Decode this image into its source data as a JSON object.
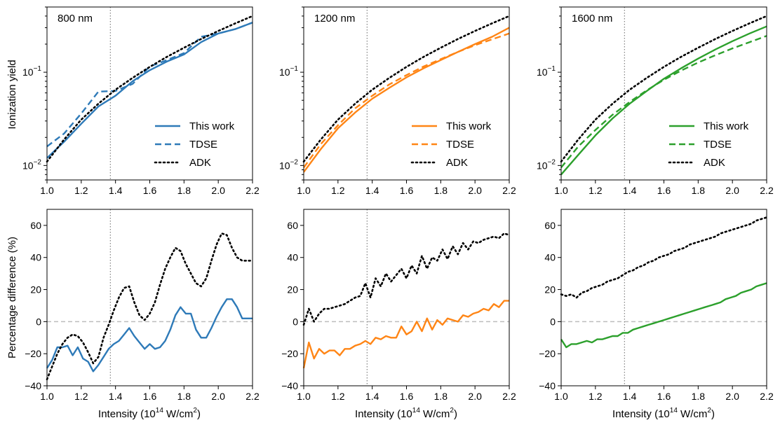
{
  "figure": {
    "xlabel": "Intensity (10",
    "xlabel_sup": "14",
    "xlabel_tail": " W/cm",
    "xlabel_sup2": "2",
    "xlabel_end": ")",
    "ylabel_top": "Ionization yield",
    "ylabel_bottom": "Percentage difference (%)"
  },
  "colors": {
    "800 nm": "#2e7ab8",
    "1200 nm": "#ff8515",
    "1600 nm": "#2ca02c",
    "adk": "#000000",
    "reference_line": "#808080",
    "zero_line": "#bdbdbd"
  },
  "chart_data": [
    {
      "type": "line",
      "title": "800 nm",
      "row": "top",
      "yscale": "log",
      "xlim": [
        1.0,
        2.2
      ],
      "ylim": [
        0.007,
        0.5
      ],
      "xticks": [
        "1.0",
        "1.2",
        "1.4",
        "1.6",
        "1.8",
        "2.0",
        "2.2"
      ],
      "yticks": [
        {
          "value": 0.01,
          "base": "10",
          "exp": "−2"
        },
        {
          "value": 0.1,
          "base": "10",
          "exp": "−1"
        }
      ],
      "vline": 1.37,
      "legend": "lower-right",
      "x": [
        1.0,
        1.1,
        1.2,
        1.3,
        1.4,
        1.5,
        1.6,
        1.7,
        1.8,
        1.9,
        2.0,
        2.1,
        2.2
      ],
      "series": [
        {
          "name": "This work",
          "style": "solid",
          "values": [
            0.012,
            0.018,
            0.028,
            0.043,
            0.056,
            0.08,
            0.105,
            0.13,
            0.155,
            0.21,
            0.26,
            0.29,
            0.34
          ]
        },
        {
          "name": "TDSE",
          "style": "dashed",
          "values": [
            0.016,
            0.022,
            0.036,
            0.062,
            0.063,
            0.075,
            0.115,
            0.135,
            0.16,
            0.24,
            0.26,
            0.29,
            0.34
          ]
        },
        {
          "name": "ADK",
          "style": "dotted",
          "values": [
            0.011,
            0.019,
            0.031,
            0.046,
            0.065,
            0.087,
            0.114,
            0.146,
            0.183,
            0.227,
            0.277,
            0.334,
            0.4
          ]
        }
      ]
    },
    {
      "type": "line",
      "title": "1200 nm",
      "row": "top",
      "yscale": "log",
      "xlim": [
        1.0,
        2.2
      ],
      "ylim": [
        0.007,
        0.5
      ],
      "xticks": [
        "1.0",
        "1.2",
        "1.4",
        "1.6",
        "1.8",
        "2.0",
        "2.2"
      ],
      "yticks": [
        {
          "value": 0.01,
          "base": "10",
          "exp": "−2"
        },
        {
          "value": 0.1,
          "base": "10",
          "exp": "−1"
        }
      ],
      "vline": 1.37,
      "legend": "lower-right",
      "x": [
        1.0,
        1.1,
        1.2,
        1.3,
        1.4,
        1.5,
        1.6,
        1.7,
        1.8,
        1.9,
        2.0,
        2.1,
        2.2
      ],
      "series": [
        {
          "name": "This work",
          "style": "solid",
          "values": [
            0.0085,
            0.015,
            0.025,
            0.037,
            0.052,
            0.068,
            0.088,
            0.11,
            0.135,
            0.165,
            0.2,
            0.24,
            0.3
          ]
        },
        {
          "name": "TDSE",
          "style": "dashed",
          "values": [
            0.0095,
            0.017,
            0.027,
            0.041,
            0.056,
            0.074,
            0.093,
            0.115,
            0.138,
            0.165,
            0.195,
            0.225,
            0.26
          ]
        },
        {
          "name": "ADK",
          "style": "dotted",
          "values": [
            0.011,
            0.019,
            0.031,
            0.046,
            0.065,
            0.087,
            0.114,
            0.146,
            0.183,
            0.227,
            0.277,
            0.334,
            0.4
          ]
        }
      ]
    },
    {
      "type": "line",
      "title": "1600 nm",
      "row": "top",
      "yscale": "log",
      "xlim": [
        1.0,
        2.2
      ],
      "ylim": [
        0.007,
        0.5
      ],
      "xticks": [
        "1.0",
        "1.2",
        "1.4",
        "1.6",
        "1.8",
        "2.0",
        "2.2"
      ],
      "yticks": [
        {
          "value": 0.01,
          "base": "10",
          "exp": "−2"
        },
        {
          "value": 0.1,
          "base": "10",
          "exp": "−1"
        }
      ],
      "vline": 1.37,
      "legend": "lower-right",
      "x": [
        1.0,
        1.1,
        1.2,
        1.3,
        1.4,
        1.5,
        1.6,
        1.7,
        1.8,
        1.9,
        2.0,
        2.1,
        2.2
      ],
      "series": [
        {
          "name": "This work",
          "style": "solid",
          "values": [
            0.008,
            0.013,
            0.021,
            0.032,
            0.046,
            0.063,
            0.085,
            0.11,
            0.14,
            0.175,
            0.215,
            0.26,
            0.31
          ]
        },
        {
          "name": "TDSE",
          "style": "dashed",
          "values": [
            0.0095,
            0.016,
            0.024,
            0.035,
            0.048,
            0.064,
            0.083,
            0.104,
            0.127,
            0.152,
            0.18,
            0.21,
            0.245
          ]
        },
        {
          "name": "ADK",
          "style": "dotted",
          "values": [
            0.011,
            0.019,
            0.031,
            0.046,
            0.065,
            0.087,
            0.114,
            0.146,
            0.183,
            0.227,
            0.277,
            0.334,
            0.4
          ]
        }
      ]
    },
    {
      "type": "line",
      "row": "bottom",
      "color_key": "800 nm",
      "yscale": "linear",
      "xlim": [
        1.0,
        2.2
      ],
      "ylim": [
        -40,
        70
      ],
      "xticks": [
        "1.0",
        "1.2",
        "1.4",
        "1.6",
        "1.8",
        "2.0",
        "2.2"
      ],
      "yticks": [
        "−40",
        "−20",
        "0",
        "20",
        "40",
        "60"
      ],
      "ytick_values": [
        -40,
        -20,
        0,
        20,
        40,
        60
      ],
      "vline": 1.37,
      "hline": 0,
      "x": [
        1.0,
        1.03,
        1.06,
        1.09,
        1.12,
        1.15,
        1.18,
        1.21,
        1.24,
        1.27,
        1.3,
        1.33,
        1.36,
        1.39,
        1.42,
        1.45,
        1.48,
        1.51,
        1.54,
        1.57,
        1.6,
        1.63,
        1.66,
        1.69,
        1.72,
        1.75,
        1.78,
        1.81,
        1.84,
        1.87,
        1.9,
        1.93,
        1.96,
        1.99,
        2.02,
        2.05,
        2.08,
        2.11,
        2.14,
        2.17,
        2.2
      ],
      "series": [
        {
          "name": "This work",
          "style": "solid",
          "values": [
            -29,
            -24,
            -16,
            -16,
            -15,
            -21,
            -16,
            -23,
            -25,
            -31,
            -27,
            -22,
            -17,
            -14,
            -12,
            -8,
            -4,
            -9,
            -13,
            -17,
            -14,
            -17,
            -16,
            -12,
            -5,
            4,
            9,
            5,
            5,
            -5,
            -10,
            -10,
            -4,
            3,
            9,
            14,
            14,
            9,
            2,
            2,
            2
          ]
        },
        {
          "name": "ADK",
          "style": "dotted",
          "values": [
            -36,
            -28,
            -20,
            -14,
            -10,
            -8,
            -9,
            -13,
            -19,
            -26,
            -22,
            -10,
            -2,
            7,
            15,
            21,
            22,
            12,
            4,
            1,
            5,
            12,
            23,
            33,
            40,
            46,
            44,
            36,
            30,
            24,
            22,
            27,
            38,
            48,
            55,
            54,
            46,
            40,
            38,
            38,
            38
          ]
        }
      ]
    },
    {
      "type": "line",
      "row": "bottom",
      "color_key": "1200 nm",
      "yscale": "linear",
      "xlim": [
        1.0,
        2.2
      ],
      "ylim": [
        -40,
        70
      ],
      "xticks": [
        "1.0",
        "1.2",
        "1.4",
        "1.6",
        "1.8",
        "2.0",
        "2.2"
      ],
      "yticks": [
        "−40",
        "−20",
        "0",
        "20",
        "40",
        "60"
      ],
      "ytick_values": [
        -40,
        -20,
        0,
        20,
        40,
        60
      ],
      "vline": 1.37,
      "hline": 0,
      "x": [
        1.0,
        1.03,
        1.06,
        1.09,
        1.12,
        1.15,
        1.18,
        1.21,
        1.24,
        1.27,
        1.3,
        1.33,
        1.36,
        1.39,
        1.42,
        1.45,
        1.48,
        1.51,
        1.54,
        1.57,
        1.6,
        1.63,
        1.66,
        1.69,
        1.72,
        1.75,
        1.78,
        1.81,
        1.84,
        1.87,
        1.9,
        1.93,
        1.96,
        1.99,
        2.02,
        2.05,
        2.08,
        2.11,
        2.14,
        2.17,
        2.2
      ],
      "series": [
        {
          "name": "This work",
          "style": "solid",
          "values": [
            -29,
            -13,
            -23,
            -17,
            -20,
            -18,
            -18,
            -21,
            -17,
            -17,
            -15,
            -14,
            -12,
            -14,
            -10,
            -11,
            -9,
            -10,
            -10,
            -3,
            -8,
            -6,
            0,
            -6,
            2,
            -5,
            1,
            -2,
            2,
            1,
            0,
            4,
            3,
            5,
            6,
            8,
            7,
            11,
            9,
            13,
            13
          ]
        },
        {
          "name": "ADK",
          "style": "dotted",
          "values": [
            -2,
            8,
            0,
            5,
            8,
            8,
            9,
            10,
            11,
            13,
            15,
            16,
            24,
            15,
            27,
            22,
            30,
            25,
            29,
            33,
            27,
            35,
            30,
            41,
            33,
            40,
            38,
            45,
            39,
            47,
            42,
            49,
            45,
            50,
            49,
            51,
            52,
            53,
            52,
            55,
            54
          ]
        }
      ]
    },
    {
      "type": "line",
      "row": "bottom",
      "color_key": "1600 nm",
      "yscale": "linear",
      "xlim": [
        1.0,
        2.2
      ],
      "ylim": [
        -40,
        70
      ],
      "xticks": [
        "1.0",
        "1.2",
        "1.4",
        "1.6",
        "1.8",
        "2.0",
        "2.2"
      ],
      "yticks": [
        "−40",
        "−20",
        "0",
        "20",
        "40",
        "60"
      ],
      "ytick_values": [
        -40,
        -20,
        0,
        20,
        40,
        60
      ],
      "vline": 1.37,
      "hline": 0,
      "x": [
        1.0,
        1.03,
        1.06,
        1.09,
        1.12,
        1.15,
        1.18,
        1.21,
        1.24,
        1.27,
        1.3,
        1.33,
        1.36,
        1.39,
        1.42,
        1.45,
        1.48,
        1.51,
        1.54,
        1.57,
        1.6,
        1.63,
        1.66,
        1.69,
        1.72,
        1.75,
        1.78,
        1.81,
        1.84,
        1.87,
        1.9,
        1.93,
        1.96,
        1.99,
        2.02,
        2.05,
        2.08,
        2.11,
        2.14,
        2.17,
        2.2
      ],
      "series": [
        {
          "name": "This work",
          "style": "solid",
          "values": [
            -11,
            -16,
            -14,
            -14,
            -13,
            -12,
            -13,
            -11,
            -11,
            -10,
            -9,
            -9,
            -7,
            -7,
            -5,
            -4,
            -3,
            -2,
            -1,
            0,
            1,
            2,
            3,
            4,
            5,
            6,
            7,
            8,
            9,
            10,
            11,
            12,
            14,
            15,
            16,
            18,
            19,
            20,
            22,
            23,
            24
          ]
        },
        {
          "name": "ADK",
          "style": "dotted",
          "values": [
            17,
            16,
            17,
            15,
            18,
            19,
            21,
            22,
            23,
            25,
            26,
            27,
            29,
            31,
            32,
            34,
            35,
            37,
            38,
            40,
            41,
            42,
            44,
            45,
            46,
            48,
            49,
            50,
            51,
            52,
            53,
            55,
            56,
            57,
            58,
            59,
            60,
            61,
            63,
            64,
            65
          ]
        }
      ]
    }
  ]
}
